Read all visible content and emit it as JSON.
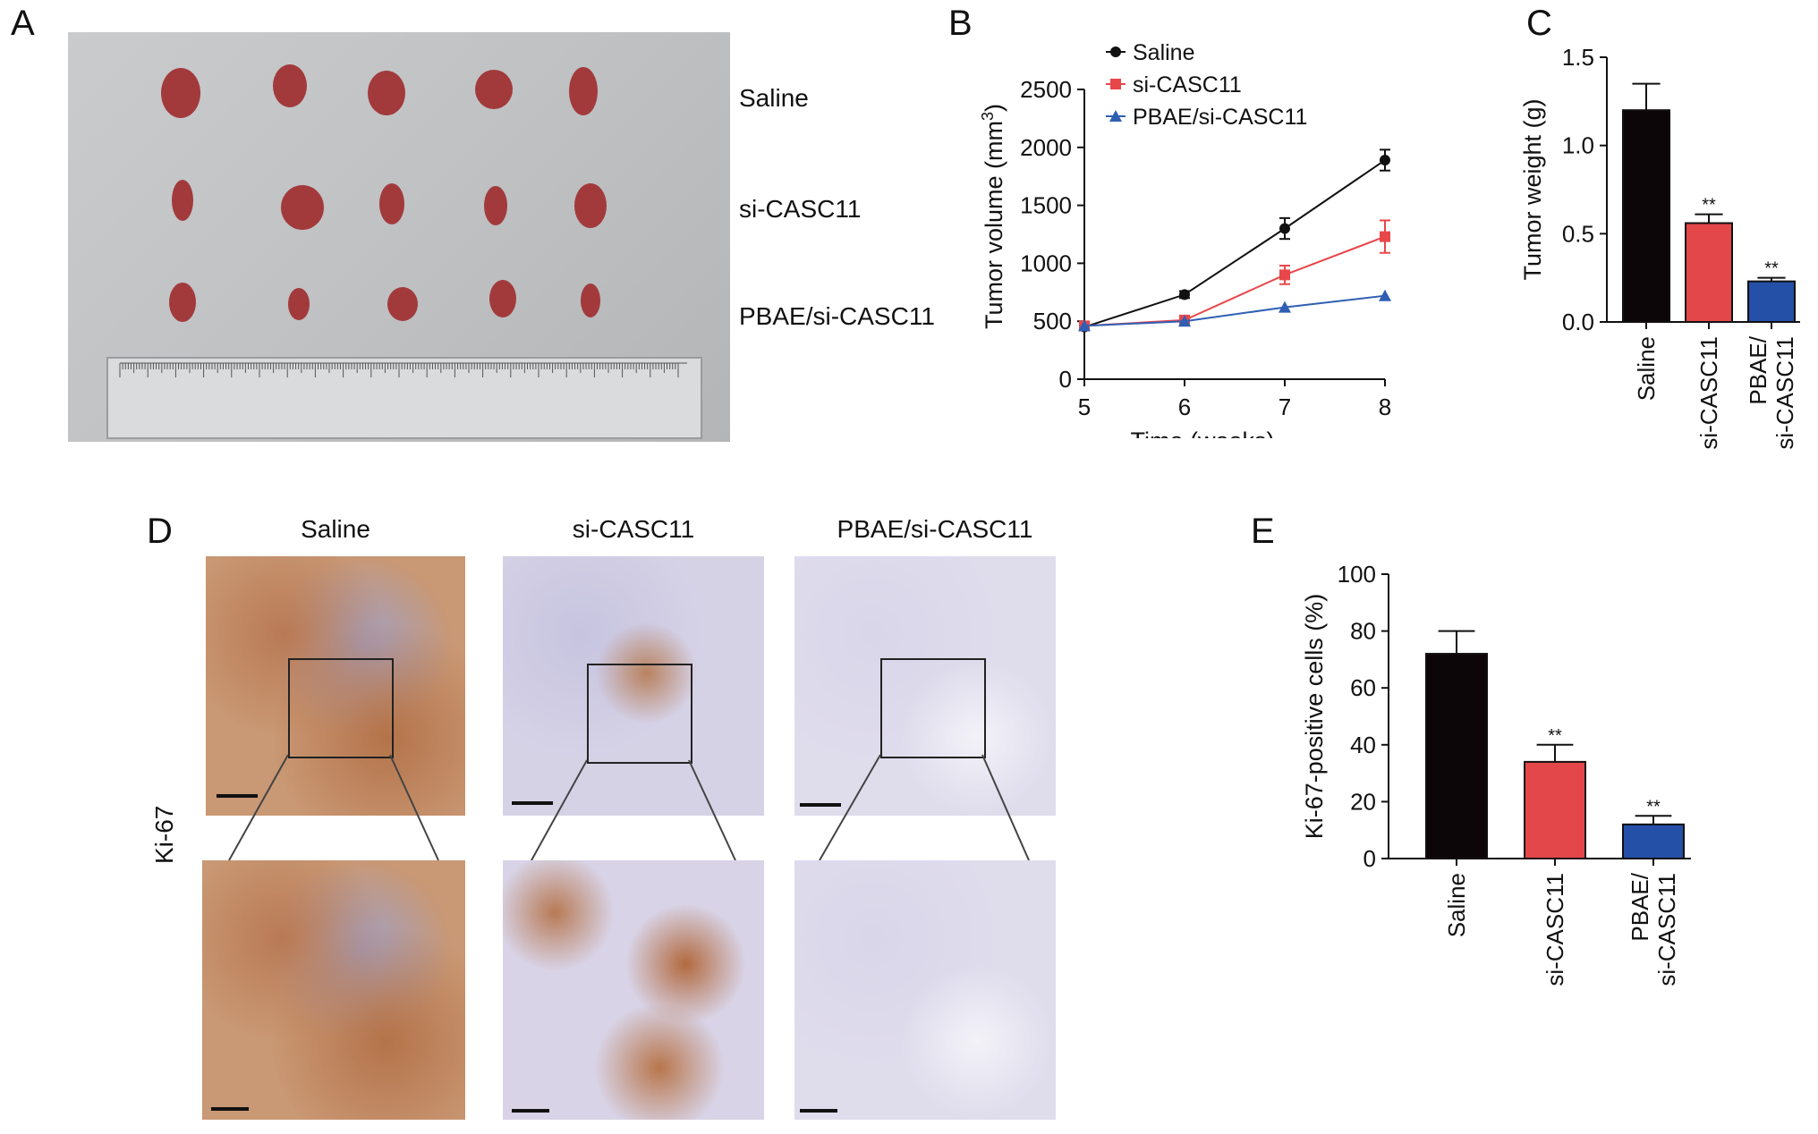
{
  "panels": {
    "A": {
      "label": "A",
      "rows": [
        "Saline",
        "si-CASC11",
        "PBAE/si-CASC11"
      ]
    },
    "B": {
      "label": "B"
    },
    "C": {
      "label": "C"
    },
    "D": {
      "label": "D",
      "columns": [
        "Saline",
        "si-CASC11",
        "PBAE/si-CASC11"
      ],
      "row_label": "Ki-67"
    },
    "E": {
      "label": "E"
    }
  },
  "chart_data": [
    {
      "type": "line",
      "xlabel": "Time (weeks)",
      "ylabel_main": "Tumor volume (mm",
      "ylabel_sup": "3",
      "ylabel_end": ")",
      "x": [
        5,
        6,
        7,
        8
      ],
      "xlim": [
        5,
        8
      ],
      "ylim": [
        0,
        2500
      ],
      "yticks": [
        0,
        500,
        1000,
        1500,
        2000,
        2500
      ],
      "xticks": [
        5,
        6,
        7,
        8
      ],
      "series": [
        {
          "name": "Saline",
          "values": [
            450,
            730,
            1300,
            1890
          ],
          "errors": [
            0,
            30,
            90,
            90
          ],
          "color": "#111111",
          "marker": "circle"
        },
        {
          "name": "si-CASC11",
          "values": [
            460,
            510,
            900,
            1230
          ],
          "errors": [
            0,
            30,
            80,
            140
          ],
          "color": "#e8474a",
          "marker": "square"
        },
        {
          "name": "PBAE/si-CASC11",
          "values": [
            460,
            500,
            620,
            720
          ],
          "errors": [
            0,
            0,
            0,
            0
          ],
          "color": "#2f5fb3",
          "marker": "triangle"
        }
      ],
      "significance": [
        "**",
        "**"
      ],
      "legend": "top-left"
    },
    {
      "type": "bar",
      "ylabel": "Tumor weight (g)",
      "categories": [
        "Saline",
        "si-CASC11",
        "PBAE/si-CASC11"
      ],
      "category_lines": [
        [
          "Saline"
        ],
        [
          "si-CASC11"
        ],
        [
          "PBAE/",
          "si-CASC11"
        ]
      ],
      "values": [
        1.2,
        0.56,
        0.23
      ],
      "errors": [
        0.15,
        0.05,
        0.02
      ],
      "colors": [
        "#0d0608",
        "#e4474a",
        "#2450a8"
      ],
      "significance": [
        "",
        "**",
        "**"
      ],
      "ylim": [
        0,
        1.5
      ],
      "yticks": [
        "0.0",
        "0.5",
        "1.0",
        "1.5"
      ]
    },
    {
      "type": "bar",
      "ylabel": "Ki-67-positive cells (%)",
      "categories": [
        "Saline",
        "si-CASC11",
        "PBAE/si-CASC11"
      ],
      "category_lines": [
        [
          "Saline"
        ],
        [
          "si-CASC11"
        ],
        [
          "PBAE/",
          "si-CASC11"
        ]
      ],
      "values": [
        72,
        34,
        12
      ],
      "errors": [
        8,
        6,
        3
      ],
      "colors": [
        "#0d0608",
        "#e4474a",
        "#2450a8"
      ],
      "significance": [
        "",
        "**",
        "**"
      ],
      "ylim": [
        0,
        100
      ],
      "yticks": [
        "0",
        "20",
        "40",
        "60",
        "80",
        "100"
      ]
    }
  ]
}
